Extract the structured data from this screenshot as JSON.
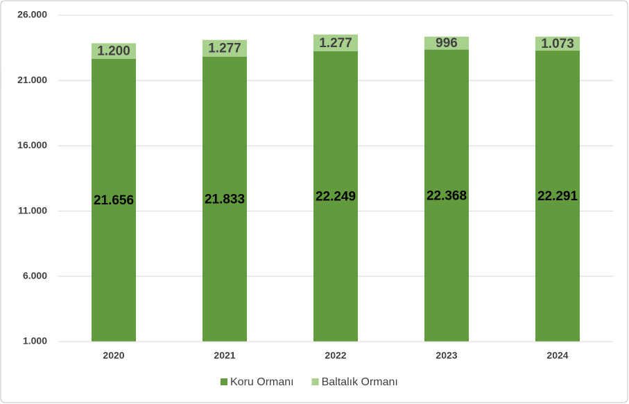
{
  "chart_data": {
    "type": "stacked_bar",
    "categories": [
      "2020",
      "2021",
      "2022",
      "2023",
      "2024"
    ],
    "series": [
      {
        "name": "Koru Ormanı",
        "color": "#629b3d",
        "values": [
          21656,
          21833,
          22249,
          22368,
          22291
        ],
        "value_labels": [
          "21.656",
          "21.833",
          "22.249",
          "22.368",
          "22.291"
        ],
        "label_color": "#000000"
      },
      {
        "name": "Baltalık Ormanı",
        "color": "#a9d18e",
        "values": [
          1200,
          1277,
          1277,
          996,
          1073
        ],
        "value_labels": [
          "1.200",
          "1.277",
          "1.277",
          "996",
          "1.073"
        ],
        "label_color": "#404040"
      }
    ],
    "ylim": [
      1000,
      26000
    ],
    "yticks": [
      {
        "value": 1000,
        "label": "1.000"
      },
      {
        "value": 6000,
        "label": "6.000"
      },
      {
        "value": 11000,
        "label": "11.000"
      },
      {
        "value": 16000,
        "label": "16.000"
      },
      {
        "value": 21000,
        "label": "21.000"
      },
      {
        "value": 26000,
        "label": "26.000"
      }
    ],
    "grid": true,
    "legend": "bottom"
  }
}
